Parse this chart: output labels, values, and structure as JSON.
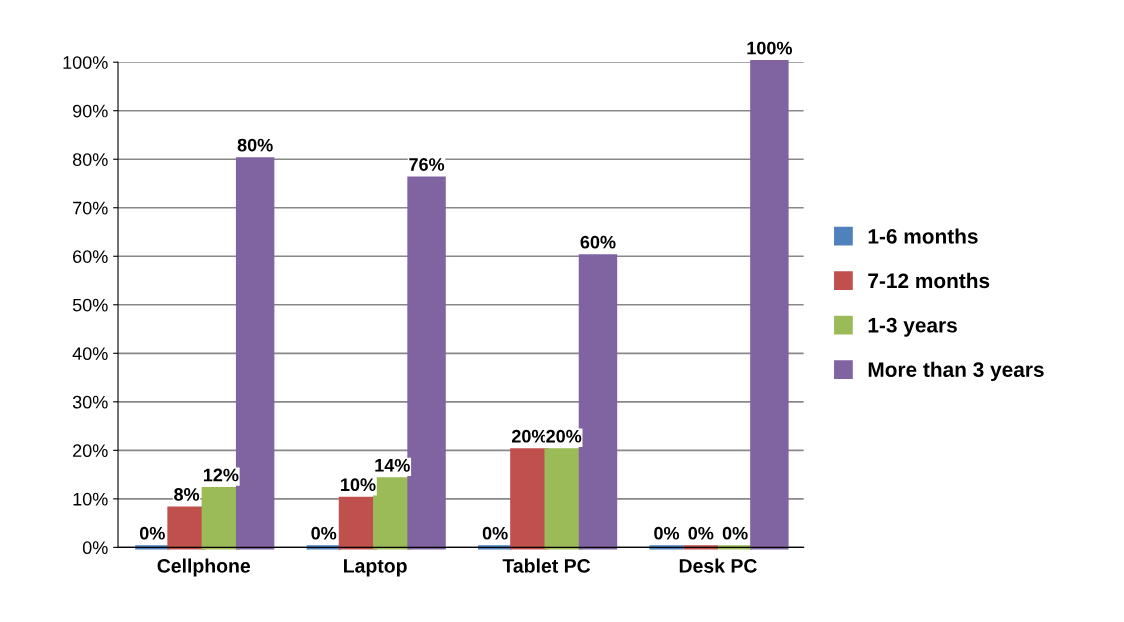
{
  "chart_data": {
    "type": "bar",
    "categories": [
      "Cellphone",
      "Laptop",
      "Tablet PC",
      "Desk PC"
    ],
    "series": [
      {
        "name": "1-6 months",
        "color": "#4f81bd",
        "values": [
          0,
          0,
          0,
          0
        ],
        "value_labels": [
          "0%",
          "0%",
          "0%",
          "0%"
        ]
      },
      {
        "name": "7-12 months",
        "color": "#c0504d",
        "values": [
          8,
          10,
          20,
          0
        ],
        "value_labels": [
          "8%",
          "10%",
          "20%",
          "0%"
        ]
      },
      {
        "name": "1-3 years",
        "color": "#9bbb59",
        "values": [
          12,
          14,
          20,
          0
        ],
        "value_labels": [
          "12%",
          "14%",
          "20%",
          "0%"
        ]
      },
      {
        "name": "More than 3 years",
        "color": "#8064a2",
        "values": [
          80,
          76,
          60,
          100
        ],
        "value_labels": [
          "80%",
          "76%",
          "60%",
          "100%"
        ]
      }
    ],
    "ylim": [
      0,
      100
    ],
    "yticks": [
      {
        "value": 0,
        "label": "0%"
      },
      {
        "value": 10,
        "label": "10%"
      },
      {
        "value": 20,
        "label": "20%"
      },
      {
        "value": 30,
        "label": "30%"
      },
      {
        "value": 40,
        "label": "40%"
      },
      {
        "value": 50,
        "label": "50%"
      },
      {
        "value": 60,
        "label": "60%"
      },
      {
        "value": 70,
        "label": "70%"
      },
      {
        "value": 80,
        "label": "80%"
      },
      {
        "value": 90,
        "label": "90%"
      },
      {
        "value": 100,
        "label": "100%"
      }
    ],
    "grid": "y",
    "legend": "right"
  }
}
